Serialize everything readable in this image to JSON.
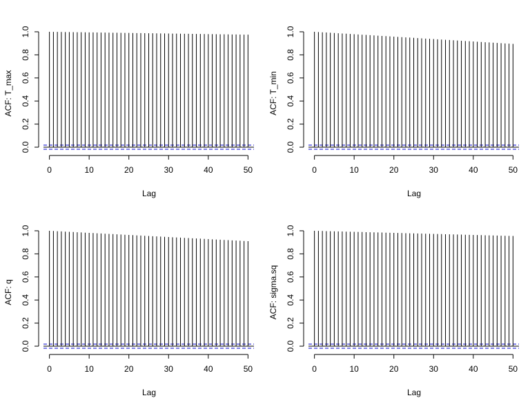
{
  "chart_data": [
    {
      "type": "bar",
      "subtype": "acf",
      "xlabel": "Lag",
      "ylabel": "ACF: T_max",
      "xlim": [
        -1.5,
        51.5
      ],
      "ylim": [
        -0.03,
        1.0
      ],
      "xticks": [
        0,
        10,
        20,
        30,
        40,
        50
      ],
      "yticks": [
        0.0,
        0.2,
        0.4,
        0.6,
        0.8,
        1.0
      ],
      "lag_start": 0,
      "lag_end": 50,
      "acf_end": 0.975,
      "confidence_limits": [
        -0.018,
        0.018
      ],
      "colors": {
        "bars": "#000000",
        "confidence": "#0000cc"
      }
    },
    {
      "type": "bar",
      "subtype": "acf",
      "xlabel": "Lag",
      "ylabel": "ACF: T_min",
      "xlim": [
        -1.5,
        51.5
      ],
      "ylim": [
        -0.03,
        1.0
      ],
      "xticks": [
        0,
        10,
        20,
        30,
        40,
        50
      ],
      "yticks": [
        0.0,
        0.2,
        0.4,
        0.6,
        0.8,
        1.0
      ],
      "lag_start": 0,
      "lag_end": 50,
      "acf_end": 0.895,
      "confidence_limits": [
        -0.018,
        0.018
      ],
      "colors": {
        "bars": "#000000",
        "confidence": "#0000cc"
      }
    },
    {
      "type": "bar",
      "subtype": "acf",
      "xlabel": "Lag",
      "ylabel": "ACF: q",
      "xlim": [
        -1.5,
        51.5
      ],
      "ylim": [
        -0.03,
        1.0
      ],
      "xticks": [
        0,
        10,
        20,
        30,
        40,
        50
      ],
      "yticks": [
        0.0,
        0.2,
        0.4,
        0.6,
        0.8,
        1.0
      ],
      "lag_start": 0,
      "lag_end": 50,
      "acf_end": 0.91,
      "confidence_limits": [
        -0.018,
        0.018
      ],
      "colors": {
        "bars": "#000000",
        "confidence": "#0000cc"
      }
    },
    {
      "type": "bar",
      "subtype": "acf",
      "xlabel": "Lag",
      "ylabel": "ACF: sigma.sq",
      "xlim": [
        -1.5,
        51.5
      ],
      "ylim": [
        -0.03,
        1.0
      ],
      "xticks": [
        0,
        10,
        20,
        30,
        40,
        50
      ],
      "yticks": [
        0.0,
        0.2,
        0.4,
        0.6,
        0.8,
        1.0
      ],
      "lag_start": 0,
      "lag_end": 50,
      "acf_end": 0.955,
      "confidence_limits": [
        -0.018,
        0.018
      ],
      "colors": {
        "bars": "#000000",
        "confidence": "#0000cc"
      }
    }
  ]
}
